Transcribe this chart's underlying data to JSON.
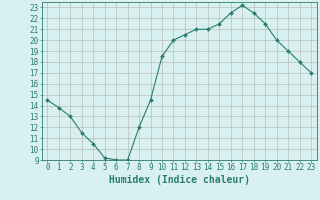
{
  "x": [
    0,
    1,
    2,
    3,
    4,
    5,
    6,
    7,
    8,
    9,
    10,
    11,
    12,
    13,
    14,
    15,
    16,
    17,
    18,
    19,
    20,
    21,
    22,
    23
  ],
  "y": [
    14.5,
    13.8,
    13.0,
    11.5,
    10.5,
    9.2,
    9.0,
    9.0,
    12.0,
    14.5,
    18.5,
    20.0,
    20.5,
    21.0,
    21.0,
    21.5,
    22.5,
    23.2,
    22.5,
    21.5,
    20.0,
    19.0,
    18.0,
    17.0
  ],
  "line_color": "#2a7d6b",
  "marker": "D",
  "marker_size": 2,
  "bg_color": "#d8f0f0",
  "grid_color": "#b0b0b0",
  "xlabel": "Humidex (Indice chaleur)",
  "xlim": [
    -0.5,
    23.5
  ],
  "ylim": [
    9,
    23.5
  ],
  "xticks": [
    0,
    1,
    2,
    3,
    4,
    5,
    6,
    7,
    8,
    9,
    10,
    11,
    12,
    13,
    14,
    15,
    16,
    17,
    18,
    19,
    20,
    21,
    22,
    23
  ],
  "yticks": [
    9,
    10,
    11,
    12,
    13,
    14,
    15,
    16,
    17,
    18,
    19,
    20,
    21,
    22,
    23
  ],
  "tick_color": "#2a7d6b",
  "font_size": 5.5,
  "xlabel_size": 7
}
